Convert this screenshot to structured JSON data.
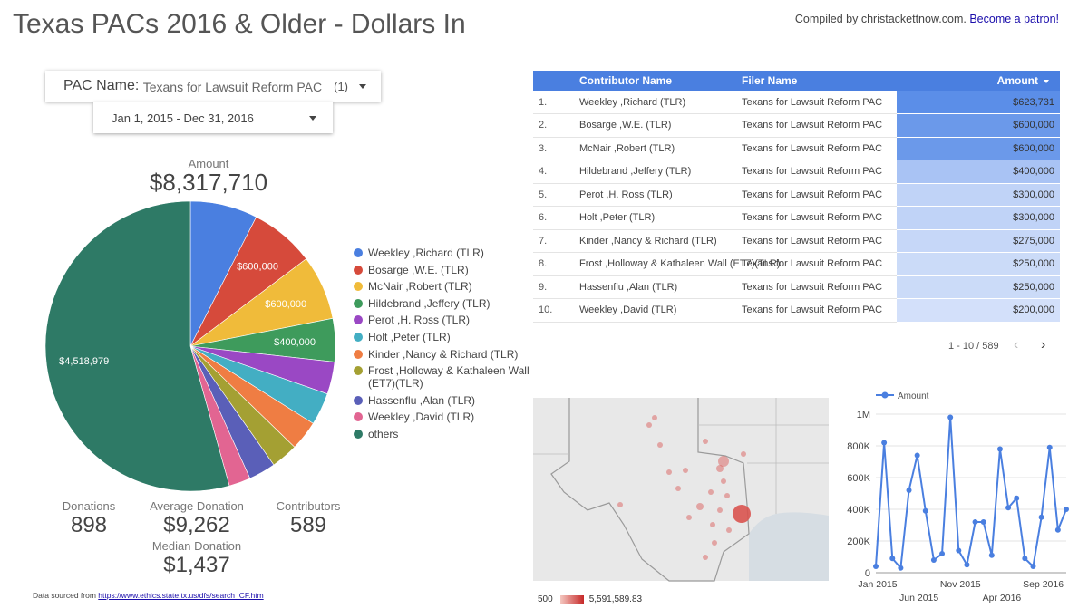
{
  "header": {
    "title": "Texas PACs 2016 & Older - Dollars In",
    "credit_text": "Compiled by christackettnow.com.",
    "patron_link": "Become a patron!"
  },
  "filters": {
    "pac_label": "PAC Name",
    "pac_value": "Texans for Lawsuit Reform PAC",
    "pac_count": "(1)",
    "date_range": "Jan 1, 2015 - Dec 31, 2016"
  },
  "amount": {
    "label": "Amount",
    "value": "$8,317,710"
  },
  "stats": {
    "donations_label": "Donations",
    "donations_value": "898",
    "avg_label": "Average Donation",
    "avg_value": "$9,262",
    "contributors_label": "Contributors",
    "contributors_value": "589",
    "median_label": "Median Donation",
    "median_value": "$1,437"
  },
  "source": {
    "prefix": "Data sourced from",
    "link": "https://www.ethics.state.tx.us/dfs/search_CF.htm"
  },
  "table": {
    "columns": [
      "Contributor Name",
      "Filer Name",
      "Amount"
    ],
    "rows": [
      {
        "n": "1.",
        "contributor": "Weekley ,Richard (TLR)",
        "filer": "Texans for Lawsuit Reform PAC",
        "amount": "$623,731"
      },
      {
        "n": "2.",
        "contributor": "Bosarge ,W.E. (TLR)",
        "filer": "Texans for Lawsuit Reform PAC",
        "amount": "$600,000"
      },
      {
        "n": "3.",
        "contributor": "McNair ,Robert (TLR)",
        "filer": "Texans for Lawsuit Reform PAC",
        "amount": "$600,000"
      },
      {
        "n": "4.",
        "contributor": "Hildebrand ,Jeffery (TLR)",
        "filer": "Texans for Lawsuit Reform PAC",
        "amount": "$400,000"
      },
      {
        "n": "5.",
        "contributor": "Perot ,H. Ross (TLR)",
        "filer": "Texans for Lawsuit Reform PAC",
        "amount": "$300,000"
      },
      {
        "n": "6.",
        "contributor": "Holt ,Peter (TLR)",
        "filer": "Texans for Lawsuit Reform PAC",
        "amount": "$300,000"
      },
      {
        "n": "7.",
        "contributor": "Kinder ,Nancy & Richard (TLR)",
        "filer": "Texans for Lawsuit Reform PAC",
        "amount": "$275,000"
      },
      {
        "n": "8.",
        "contributor": "Frost ,Holloway & Kathaleen Wall (ET7)(TLR)",
        "filer": "Texans for Lawsuit Reform PAC",
        "amount": "$250,000"
      },
      {
        "n": "9.",
        "contributor": "Hassenflu ,Alan (TLR)",
        "filer": "Texans for Lawsuit Reform PAC",
        "amount": "$250,000"
      },
      {
        "n": "10.",
        "contributor": "Weekley ,David (TLR)",
        "filer": "Texans for Lawsuit Reform PAC",
        "amount": "$200,000"
      }
    ],
    "pager": "1 - 10 / 589"
  },
  "map": {
    "scale_min": "500",
    "scale_max": "5,591,589.83"
  },
  "chart_data": [
    {
      "type": "pie",
      "slices": [
        {
          "label": "Weekley ,Richard (TLR)",
          "value": 623731,
          "color": "#4a7fe0",
          "data_label": ""
        },
        {
          "label": "Bosarge ,W.E. (TLR)",
          "value": 600000,
          "color": "#d64a3b",
          "data_label": "$600,000"
        },
        {
          "label": "McNair ,Robert (TLR)",
          "value": 600000,
          "color": "#f0bb3a",
          "data_label": "$600,000"
        },
        {
          "label": "Hildebrand ,Jeffery (TLR)",
          "value": 400000,
          "color": "#3e9b5c",
          "data_label": "$400,000"
        },
        {
          "label": "Perot ,H. Ross (TLR)",
          "value": 300000,
          "color": "#9a48c4",
          "data_label": ""
        },
        {
          "label": "Holt ,Peter (TLR)",
          "value": 300000,
          "color": "#43aec3",
          "data_label": ""
        },
        {
          "label": "Kinder ,Nancy & Richard (TLR)",
          "value": 275000,
          "color": "#ef7d43",
          "data_label": ""
        },
        {
          "label": "Frost ,Holloway & Kathaleen Wall (ET7)(TLR)",
          "value": 250000,
          "color": "#a4a033",
          "data_label": ""
        },
        {
          "label": "Hassenflu ,Alan (TLR)",
          "value": 250000,
          "color": "#5a5fb8",
          "data_label": ""
        },
        {
          "label": "Weekley ,David (TLR)",
          "value": 200000,
          "color": "#e26592",
          "data_label": ""
        },
        {
          "label": "others",
          "value": 4518979,
          "color": "#2e7a66",
          "data_label": "$4,518,979"
        }
      ],
      "legend": "right"
    },
    {
      "type": "line",
      "series": [
        {
          "name": "Amount",
          "color": "#4a7fe0",
          "values": [
            40000,
            820000,
            90000,
            30000,
            520000,
            740000,
            390000,
            80000,
            120000,
            980000,
            140000,
            50000,
            320000,
            320000,
            110000,
            780000,
            410000,
            470000,
            90000,
            40000,
            350000,
            790000,
            270000,
            400000
          ]
        }
      ],
      "x": [
        "2015-01",
        "2015-02",
        "2015-03",
        "2015-04",
        "2015-05",
        "2015-06",
        "2015-07",
        "2015-08",
        "2015-09",
        "2015-10",
        "2015-11",
        "2015-12",
        "2016-01",
        "2016-02",
        "2016-03",
        "2016-04",
        "2016-05",
        "2016-06",
        "2016-07",
        "2016-08",
        "2016-09",
        "2016-10",
        "2016-11",
        "2016-12"
      ],
      "x_tick_labels_top": [
        {
          "at": 0,
          "label": "Jan 2015"
        },
        {
          "at": 10,
          "label": "Nov 2015"
        },
        {
          "at": 20,
          "label": "Sep 2016"
        }
      ],
      "x_tick_labels_bottom": [
        {
          "at": 5,
          "label": "Jun 2015"
        },
        {
          "at": 15,
          "label": "Apr 2016"
        }
      ],
      "y_ticks": [
        {
          "v": 0,
          "label": "0"
        },
        {
          "v": 200000,
          "label": "200K"
        },
        {
          "v": 400000,
          "label": "400K"
        },
        {
          "v": 600000,
          "label": "600K"
        },
        {
          "v": 800000,
          "label": "800K"
        },
        {
          "v": 1000000,
          "label": "1M"
        }
      ],
      "ylim": [
        0,
        1000000
      ],
      "grid": true,
      "legend": "top-left"
    }
  ]
}
